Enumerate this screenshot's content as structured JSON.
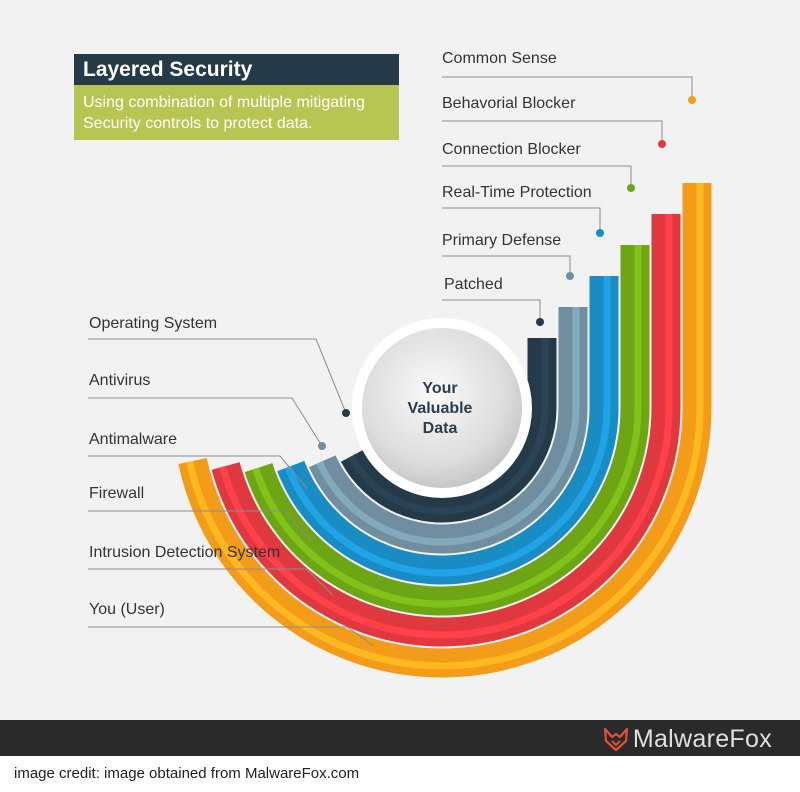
{
  "header": {
    "title": "Layered Security",
    "subtitle_line1": "Using combination of multiple mitigating",
    "subtitle_line2": "Security controls to protect data."
  },
  "center": {
    "line1": "Your",
    "line2": "Valuable",
    "line3": "Data"
  },
  "layers": [
    {
      "inner": "Operating System",
      "outer": "Patched",
      "color": "#243a48"
    },
    {
      "inner": "Antivirus",
      "outer": "Primary Defense",
      "color": "#6f8fa0"
    },
    {
      "inner": "Antimalware",
      "outer": "Real-Time Protection",
      "color": "#1a8cc4"
    },
    {
      "inner": "Firewall",
      "outer": "Connection Blocker",
      "color": "#6ea515"
    },
    {
      "inner": "Intrusion Detection System",
      "outer": "Behavorial Blocker",
      "color": "#e0383f"
    },
    {
      "inner": "You (User)",
      "outer": "Common Sense",
      "color": "#f39c1a"
    }
  ],
  "footer": {
    "brand": "MalwareFox",
    "credit": "image credit: image obtained from MalwareFox.com"
  }
}
